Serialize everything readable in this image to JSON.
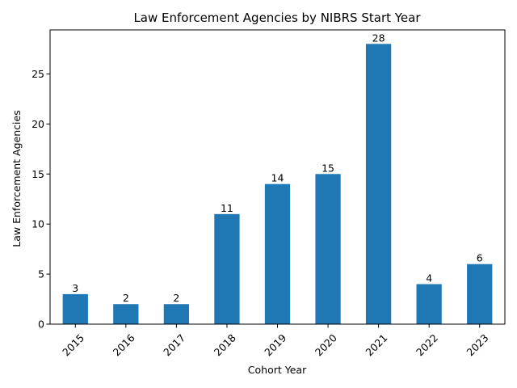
{
  "chart_data": {
    "type": "bar",
    "title": "Law Enforcement Agencies by NIBRS Start Year",
    "xlabel": "Cohort Year",
    "ylabel": "Law Enforcement Agencies",
    "categories": [
      "2015",
      "2016",
      "2017",
      "2018",
      "2019",
      "2020",
      "2021",
      "2022",
      "2023"
    ],
    "values": [
      3,
      2,
      2,
      11,
      14,
      15,
      28,
      4,
      6
    ],
    "ylim": [
      0,
      29.4
    ],
    "yticks": [
      0,
      5,
      10,
      15,
      20,
      25
    ],
    "grid": false,
    "legend": "none",
    "bar_color": "#1f77b4",
    "x_tick_rotation": 45
  }
}
